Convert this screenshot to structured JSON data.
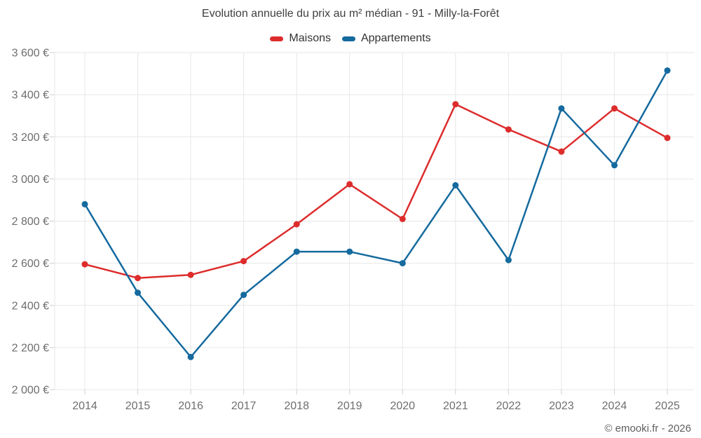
{
  "chart_data": {
    "type": "line",
    "title": "Evolution annuelle du prix au m² médian - 91 - Milly-la-Forêt",
    "categories": [
      "2014",
      "2015",
      "2016",
      "2017",
      "2018",
      "2019",
      "2020",
      "2021",
      "2022",
      "2023",
      "2024",
      "2025"
    ],
    "series": [
      {
        "name": "Maisons",
        "color": "#dd2c2c",
        "values": [
          2595,
          2530,
          2545,
          2610,
          2785,
          2975,
          2810,
          3355,
          3235,
          3130,
          3335,
          3195
        ]
      },
      {
        "name": "Appartements",
        "color": "#156a9e",
        "values": [
          2880,
          2460,
          2155,
          2450,
          2655,
          2655,
          2600,
          2970,
          2615,
          3335,
          3065,
          3515
        ]
      }
    ],
    "xlabel": "",
    "ylabel": "",
    "ylim": [
      2000,
      3600
    ],
    "ytick_step": 200,
    "ytick_suffix": " €",
    "grid": true,
    "legend_position": "top",
    "copyright": "© emooki.fr - 2026"
  },
  "colors": {
    "grid": "#e7e7e7",
    "tick": "#cfcfcf",
    "axis_text": "#6e6e6e",
    "title_text": "#3e3e3e",
    "legend_text": "#333333",
    "copyright_text": "#5e5e5e",
    "background": "#ffffff"
  }
}
